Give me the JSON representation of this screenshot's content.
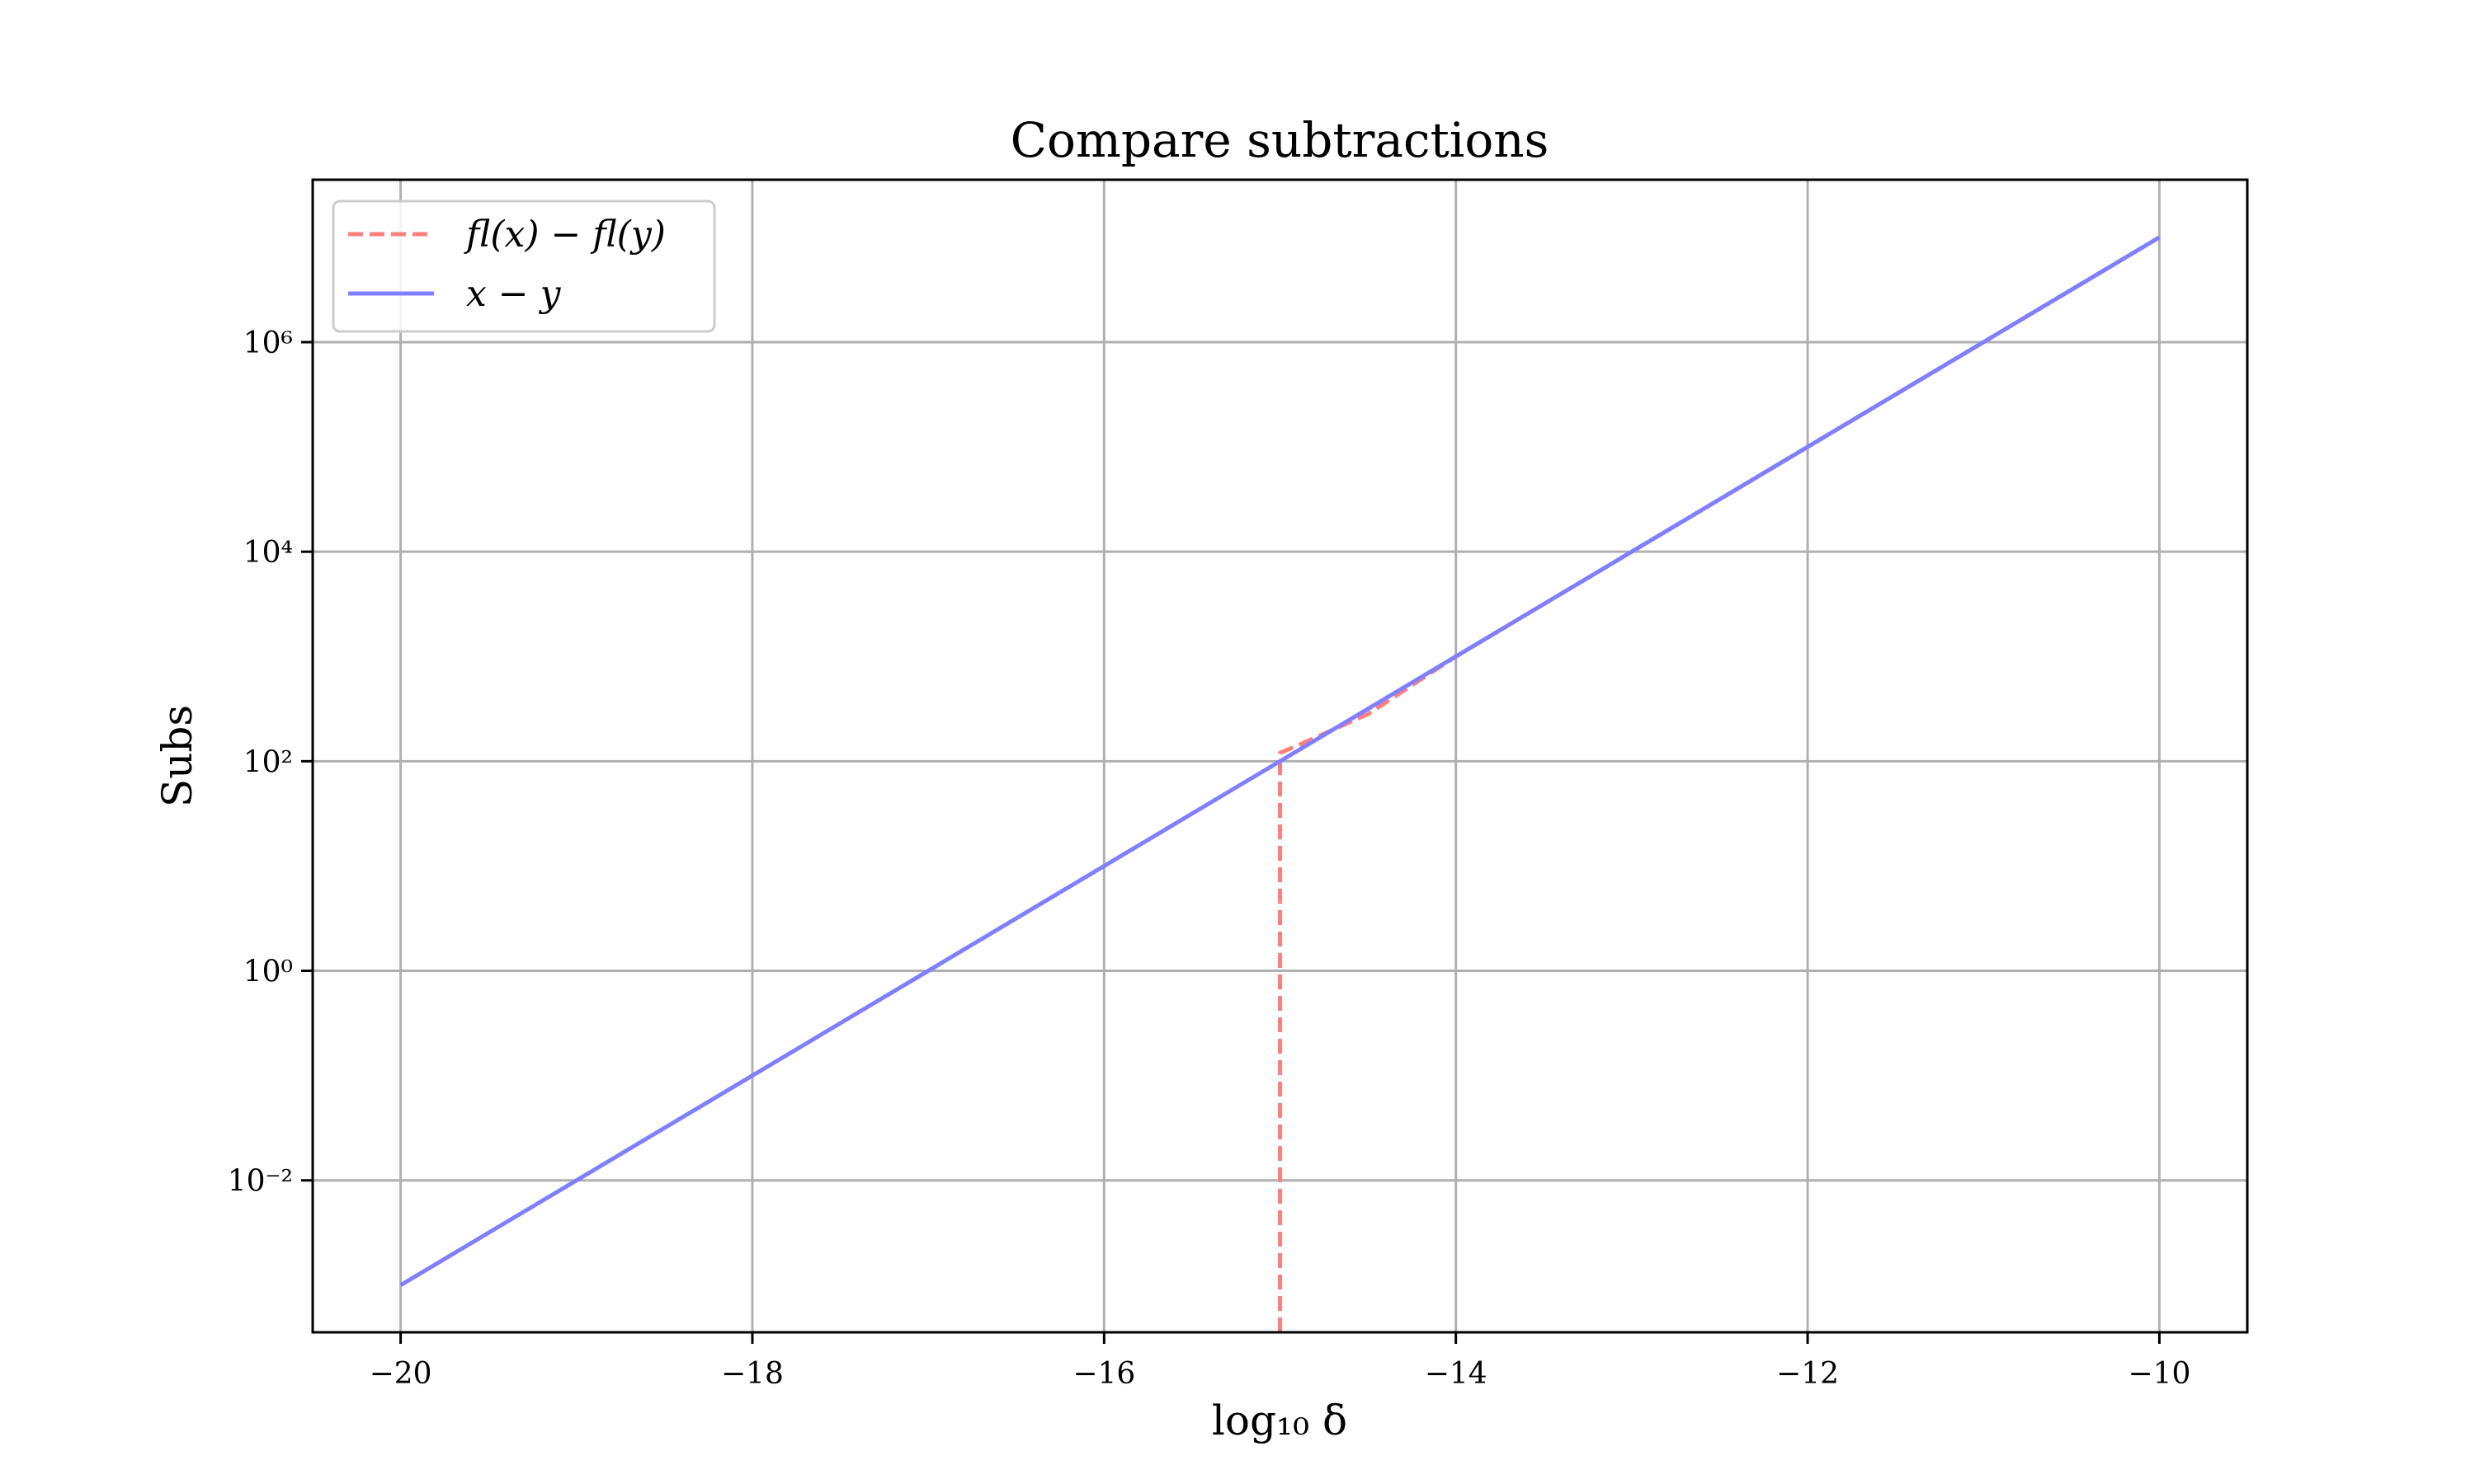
{
  "chart_data": {
    "type": "line",
    "title": "Compare subtractions",
    "xlabel": "log₁₀ δ",
    "ylabel": "Subs",
    "xlim": [
      -20.5,
      -9.5
    ],
    "ylim_log10": [
      -3.45,
      7.55
    ],
    "y_scale": "log",
    "grid": true,
    "legend_position": "top-left",
    "x_ticks": [
      -20,
      -18,
      -16,
      -14,
      -12,
      -10
    ],
    "x_tick_labels": [
      "−20",
      "−18",
      "−16",
      "−14",
      "−12",
      "−10"
    ],
    "y_ticks_log10": [
      -2,
      0,
      2,
      4,
      6
    ],
    "y_tick_labels": [
      "10⁻²",
      "10⁰",
      "10²",
      "10⁴",
      "10⁶"
    ],
    "series": [
      {
        "name": "fl(x) − fl(y)",
        "color": "#ff7f7f",
        "style": "dashed",
        "drop_to_bottom_x": -15,
        "x": [
          -15,
          -14.9,
          -14.5,
          -14,
          -13.5,
          -13,
          -12.5,
          -12,
          -11.5,
          -11,
          -10.5,
          -10
        ],
        "y_log10": [
          2.08,
          2.15,
          2.45,
          3.0,
          3.5,
          4.0,
          4.5,
          5.0,
          5.5,
          6.0,
          6.5,
          7.0
        ]
      },
      {
        "name": "x − y",
        "color": "#7f7fff",
        "style": "solid",
        "x": [
          -20,
          -10
        ],
        "y_log10": [
          -3,
          7
        ]
      }
    ]
  }
}
